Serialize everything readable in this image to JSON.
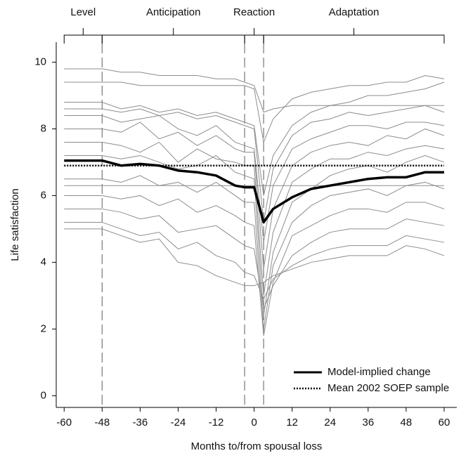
{
  "chart_data": {
    "type": "line",
    "xlabel": "Months to/from spousal loss",
    "ylabel": "Life satisfaction",
    "xlim": [
      -62.5,
      64
    ],
    "ylim": [
      -0.35,
      10.6
    ],
    "xticks": [
      -60,
      -48,
      -36,
      -24,
      -12,
      0,
      12,
      24,
      36,
      48,
      60
    ],
    "yticks": [
      0,
      2,
      4,
      6,
      8,
      10
    ],
    "legend": "lower right",
    "phases": [
      {
        "label": "Level",
        "start": -60,
        "end": -48
      },
      {
        "label": "Anticipation",
        "start": -48,
        "end": -3
      },
      {
        "label": "Reaction",
        "start": -3,
        "end": 3
      },
      {
        "label": "Adaptation",
        "start": 3,
        "end": 60
      }
    ],
    "x": [
      -60,
      -48,
      -42,
      -36,
      -30,
      -24,
      -18,
      -12,
      -6,
      -3,
      0,
      3,
      6,
      12,
      18,
      24,
      30,
      36,
      42,
      48,
      54,
      60
    ],
    "individual_color": "#8c8c8c",
    "individual_lines": [
      [
        9.8,
        9.8,
        9.7,
        9.7,
        9.6,
        9.6,
        9.6,
        9.5,
        9.5,
        9.4,
        9.3,
        8.5,
        8.6,
        8.7,
        8.7,
        8.7,
        8.7,
        8.7,
        8.7,
        8.7,
        8.7,
        8.7
      ],
      [
        9.4,
        9.4,
        9.4,
        9.3,
        9.3,
        9.3,
        9.3,
        9.3,
        9.3,
        9.3,
        9.2,
        7.6,
        8.3,
        8.9,
        9.1,
        9.2,
        9.3,
        9.3,
        9.4,
        9.4,
        9.6,
        9.5
      ],
      [
        8.8,
        8.8,
        8.6,
        8.7,
        8.5,
        8.6,
        8.4,
        8.5,
        8.3,
        8.2,
        8.1,
        6.0,
        7.2,
        8.1,
        8.5,
        8.7,
        8.8,
        9.0,
        9.0,
        9.1,
        9.2,
        9.4
      ],
      [
        8.6,
        8.6,
        8.5,
        8.6,
        8.4,
        8.5,
        8.3,
        8.4,
        8.2,
        8.1,
        8.0,
        5.2,
        6.8,
        7.8,
        8.2,
        8.3,
        8.5,
        8.4,
        8.5,
        8.6,
        8.7,
        8.5
      ],
      [
        8.4,
        8.4,
        8.2,
        8.3,
        8.4,
        8.0,
        7.8,
        8.1,
        7.6,
        7.5,
        7.4,
        4.6,
        6.3,
        7.4,
        7.7,
        7.9,
        8.1,
        8.1,
        8.0,
        8.2,
        8.2,
        8.1
      ],
      [
        8.0,
        8.0,
        7.9,
        8.2,
        7.7,
        7.9,
        7.5,
        7.8,
        7.4,
        7.3,
        7.3,
        3.8,
        5.6,
        6.9,
        7.3,
        7.5,
        7.6,
        7.5,
        7.8,
        7.7,
        8.0,
        7.8
      ],
      [
        7.6,
        7.6,
        7.5,
        7.3,
        7.6,
        7.0,
        7.4,
        7.1,
        7.0,
        6.9,
        6.9,
        3.0,
        4.9,
        6.4,
        6.8,
        7.1,
        7.1,
        7.3,
        7.2,
        7.4,
        7.5,
        7.4
      ],
      [
        7.2,
        7.2,
        7.1,
        7.2,
        7.0,
        6.8,
        6.9,
        7.2,
        6.7,
        6.6,
        6.5,
        2.4,
        4.3,
        5.8,
        6.2,
        6.6,
        6.8,
        6.9,
        6.7,
        7.0,
        7.2,
        7.0
      ],
      [
        6.5,
        6.5,
        6.4,
        6.6,
        6.3,
        6.4,
        6.1,
        6.4,
        6.0,
        5.8,
        5.8,
        2.0,
        3.9,
        5.2,
        5.7,
        6.0,
        6.1,
        6.2,
        6.0,
        6.3,
        6.4,
        6.2
      ],
      [
        6.3,
        6.3,
        6.3,
        6.3,
        6.3,
        6.3,
        6.3,
        6.3,
        6.3,
        6.3,
        6.3,
        6.3,
        6.3,
        6.3,
        6.3,
        6.3,
        6.3,
        6.3,
        6.3,
        6.3,
        6.3,
        6.3
      ],
      [
        6.0,
        6.0,
        5.9,
        6.0,
        5.7,
        5.9,
        5.5,
        5.7,
        5.4,
        5.2,
        5.1,
        1.8,
        3.4,
        4.8,
        5.1,
        5.4,
        5.6,
        5.6,
        5.5,
        5.8,
        5.8,
        5.6
      ],
      [
        5.6,
        5.6,
        5.5,
        5.3,
        5.4,
        4.9,
        5.0,
        5.1,
        4.7,
        4.5,
        4.4,
        2.6,
        3.3,
        4.2,
        4.6,
        4.9,
        5.0,
        5.0,
        5.0,
        5.3,
        5.2,
        5.1
      ],
      [
        5.2,
        5.2,
        5.0,
        4.8,
        4.9,
        4.4,
        4.6,
        4.2,
        4.0,
        3.7,
        3.6,
        2.9,
        3.5,
        3.9,
        4.2,
        4.4,
        4.5,
        4.5,
        4.5,
        4.8,
        4.7,
        4.6
      ],
      [
        5.0,
        5.0,
        4.8,
        4.6,
        4.7,
        4.0,
        3.9,
        3.6,
        3.4,
        3.3,
        3.3,
        3.4,
        3.6,
        3.8,
        4.0,
        4.1,
        4.2,
        4.2,
        4.2,
        4.5,
        4.4,
        4.2
      ]
    ],
    "series": [
      {
        "name": "Model-implied change",
        "color": "#000000",
        "values": [
          7.05,
          7.05,
          6.9,
          6.95,
          6.9,
          6.75,
          6.7,
          6.6,
          6.3,
          6.25,
          6.25,
          5.2,
          5.6,
          5.95,
          6.2,
          6.3,
          6.4,
          6.5,
          6.55,
          6.55,
          6.7,
          6.7
        ]
      }
    ],
    "reference_line": {
      "name": "Mean 2002 SOEP sample",
      "value": 6.9,
      "color": "#000000"
    }
  }
}
